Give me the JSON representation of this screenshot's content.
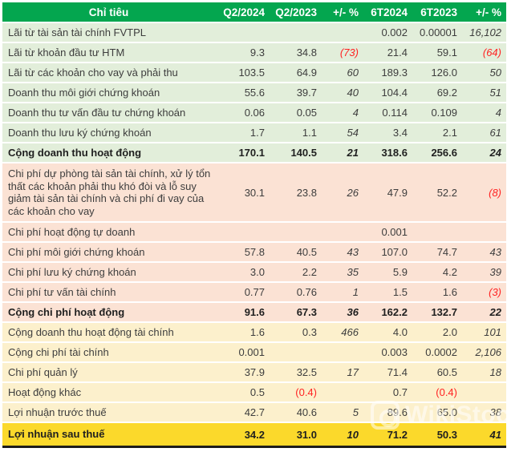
{
  "watermark": {
    "text": "WikiStock"
  },
  "colors": {
    "header_green": "#04A64F",
    "section_green": "#E2EEDA",
    "section_pink": "#FBE2D4",
    "section_yellow": "#FCF0CC",
    "total_gold": "#FBD92B",
    "negative_red": "#FF2222",
    "header_text": "#FFFFFF",
    "body_text": "#3D3D3D"
  },
  "chart_data": {
    "type": "table",
    "title": "",
    "columns": [
      "Chỉ tiêu",
      "Q2/2024",
      "Q2/2023",
      "+/- %",
      "6T2024",
      "6T2023",
      "+/- %"
    ],
    "rows": [
      {
        "label": "Lãi từ tài sản tài chính FVTPL",
        "values": [
          "",
          "",
          "",
          "0.002",
          "0.00001",
          "16,102"
        ],
        "section": "green",
        "bold": false
      },
      {
        "label": "Lãi từ khoản đầu tư HTM",
        "values": [
          "9.3",
          "34.8",
          "(73)",
          "21.4",
          "59.1",
          "(64)"
        ],
        "section": "green",
        "bold": false
      },
      {
        "label": "Lãi từ các khoản cho vay và phải thu",
        "values": [
          "103.5",
          "64.9",
          "60",
          "189.3",
          "126.0",
          "50"
        ],
        "section": "green",
        "bold": false
      },
      {
        "label": "Doanh thu môi giới chứng khoán",
        "values": [
          "55.6",
          "39.7",
          "40",
          "104.4",
          "69.2",
          "51"
        ],
        "section": "green",
        "bold": false
      },
      {
        "label": "Doanh thu tư vấn đầu tư chứng khoán",
        "values": [
          "0.06",
          "0.05",
          "4",
          "0.114",
          "0.109",
          "4"
        ],
        "section": "green",
        "bold": false
      },
      {
        "label": "Doanh thu lưu ký chứng khoán",
        "values": [
          "1.7",
          "1.1",
          "54",
          "3.4",
          "2.1",
          "61"
        ],
        "section": "green",
        "bold": false
      },
      {
        "label": "Cộng doanh thu hoạt động",
        "values": [
          "170.1",
          "140.5",
          "21",
          "318.6",
          "256.6",
          "24"
        ],
        "section": "green",
        "bold": true
      },
      {
        "label": "Chi phí dự phòng tài sản tài chính, xử lý tổn thất các khoản phải thu khó đòi và lỗ suy giảm tài sản tài chính và chi phí đi vay của các khoản cho vay",
        "values": [
          "30.1",
          "23.8",
          "26",
          "47.9",
          "52.2",
          "(8)"
        ],
        "section": "pink",
        "bold": false,
        "multiline": true
      },
      {
        "label": "Chi phí hoạt động tự doanh",
        "values": [
          "",
          "",
          "",
          "0.001",
          "",
          ""
        ],
        "section": "pink",
        "bold": false
      },
      {
        "label": "Chi phí môi giới chứng khoán",
        "values": [
          "57.8",
          "40.5",
          "43",
          "107.0",
          "74.7",
          "43"
        ],
        "section": "pink",
        "bold": false
      },
      {
        "label": "Chi phí lưu ký chứng khoán",
        "values": [
          "3.0",
          "2.2",
          "35",
          "5.9",
          "4.2",
          "39"
        ],
        "section": "pink",
        "bold": false
      },
      {
        "label": "Chi phí tư vấn tài chính",
        "values": [
          "0.77",
          "0.76",
          "1",
          "1.5",
          "1.6",
          "(3)"
        ],
        "section": "pink",
        "bold": false
      },
      {
        "label": "Cộng chi phí hoạt động",
        "values": [
          "91.6",
          "67.3",
          "36",
          "162.2",
          "132.7",
          "22"
        ],
        "section": "pink",
        "bold": true
      },
      {
        "label": "Cộng doanh thu hoạt động tài chính",
        "values": [
          "1.6",
          "0.3",
          "466",
          "4.0",
          "2.0",
          "101"
        ],
        "section": "yellow",
        "bold": false
      },
      {
        "label": "Cộng chi phí tài chính",
        "values": [
          "0.001",
          "",
          "",
          "0.003",
          "0.0002",
          "2,106"
        ],
        "section": "yellow",
        "bold": false
      },
      {
        "label": "Chi phí quản lý",
        "values": [
          "37.9",
          "32.5",
          "17",
          "71.4",
          "60.5",
          "18"
        ],
        "section": "yellow",
        "bold": false
      },
      {
        "label": "Hoạt động khác",
        "values": [
          "0.5",
          "(0.4)",
          "",
          "0.7",
          "(0.4)",
          ""
        ],
        "section": "yellow",
        "bold": false
      },
      {
        "label": "Lợi nhuận trước thuế",
        "values": [
          "42.7",
          "40.6",
          "5",
          "89.6",
          "65.0",
          "38"
        ],
        "section": "yellow",
        "bold": false
      },
      {
        "label": "Lợi nhuận sau thuế",
        "values": [
          "34.2",
          "31.0",
          "10",
          "71.2",
          "50.3",
          "41"
        ],
        "section": "gold",
        "bold": true,
        "final": true
      }
    ]
  }
}
